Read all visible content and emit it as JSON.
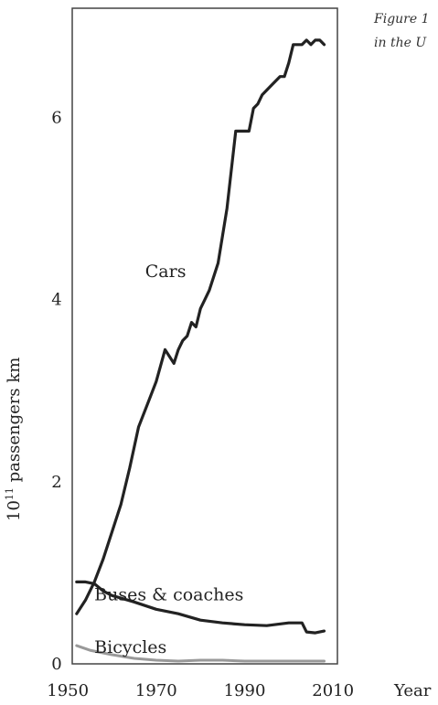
{
  "caption": {
    "line1": "Figure 1",
    "line2": "in the U"
  },
  "chart_data": {
    "type": "line",
    "title": "",
    "xlabel": "Year",
    "ylabel_base": "10",
    "ylabel_exp": "11",
    "ylabel_rest": " passengers km",
    "xlim": [
      1951,
      2011
    ],
    "ylim": [
      0,
      7.2
    ],
    "xticks": [
      1950,
      1970,
      1990,
      2010
    ],
    "yticks": [
      0,
      2,
      4,
      6
    ],
    "grid": false,
    "legend": "inline labels",
    "series": [
      {
        "name": "Cars",
        "color": "#222222",
        "x": [
          1952,
          1954,
          1956,
          1958,
          1960,
          1962,
          1964,
          1966,
          1968,
          1970,
          1972,
          1974,
          1975,
          1976,
          1977,
          1978,
          1979,
          1980,
          1981,
          1982,
          1984,
          1986,
          1988,
          1989,
          1990,
          1991,
          1992,
          1993,
          1994,
          1996,
          1998,
          1999,
          2000,
          2001,
          2002,
          2003,
          2004,
          2005,
          2006,
          2007,
          2008
        ],
        "values": [
          0.55,
          0.7,
          0.9,
          1.15,
          1.45,
          1.75,
          2.15,
          2.6,
          2.85,
          3.1,
          3.45,
          3.3,
          3.45,
          3.55,
          3.6,
          3.75,
          3.7,
          3.9,
          4.0,
          4.1,
          4.4,
          5.0,
          5.85,
          5.85,
          5.85,
          5.85,
          6.1,
          6.15,
          6.25,
          6.35,
          6.45,
          6.45,
          6.6,
          6.8,
          6.8,
          6.8,
          6.85,
          6.8,
          6.85,
          6.85,
          6.8
        ],
        "label": "Cars"
      },
      {
        "name": "Buses & coaches",
        "color": "#222222",
        "x": [
          1952,
          1954,
          1956,
          1958,
          1960,
          1965,
          1970,
          1975,
          1980,
          1985,
          1990,
          1995,
          2000,
          2003,
          2004,
          2006,
          2008
        ],
        "values": [
          0.9,
          0.9,
          0.88,
          0.8,
          0.75,
          0.68,
          0.6,
          0.55,
          0.48,
          0.45,
          0.43,
          0.42,
          0.45,
          0.45,
          0.35,
          0.34,
          0.36
        ],
        "label": "Buses & coaches"
      },
      {
        "name": "Bicycles",
        "color": "#999999",
        "x": [
          1952,
          1955,
          1960,
          1965,
          1970,
          1975,
          1980,
          1985,
          1990,
          1995,
          2000,
          2005,
          2008
        ],
        "values": [
          0.2,
          0.15,
          0.1,
          0.06,
          0.04,
          0.03,
          0.04,
          0.04,
          0.03,
          0.03,
          0.03,
          0.03,
          0.03
        ],
        "label": "Bicycles"
      }
    ]
  }
}
